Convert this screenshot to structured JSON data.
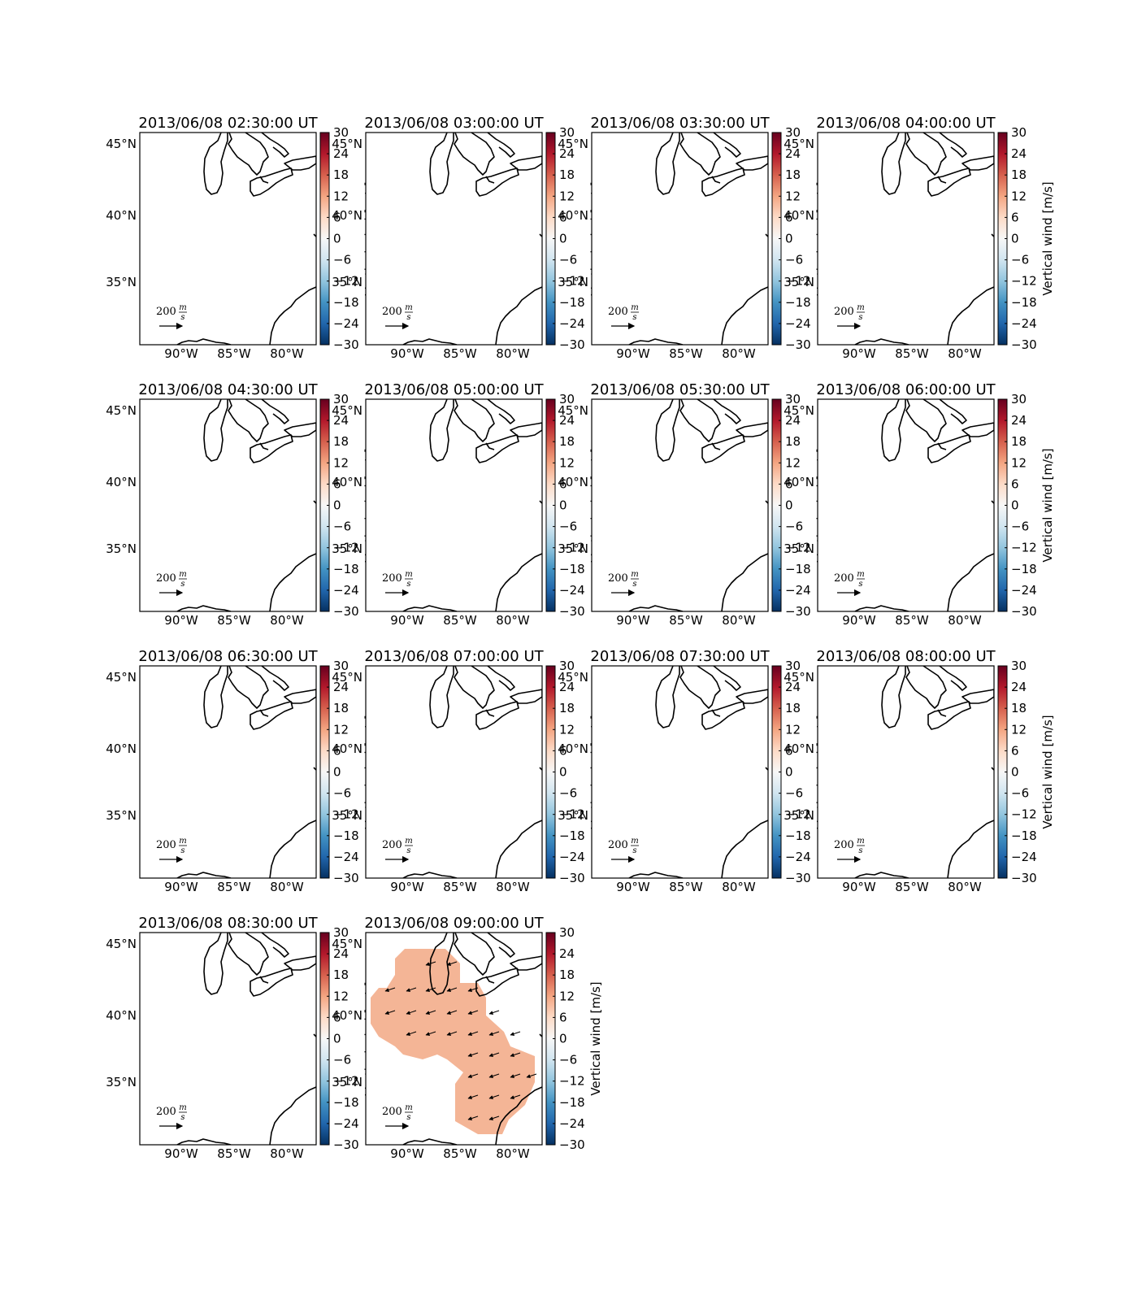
{
  "figure": {
    "colorbar": {
      "label": "Vertical wind [m/s]",
      "ticks": [
        "30",
        "24",
        "18",
        "12",
        "6",
        "0",
        "−6",
        "−12",
        "−18",
        "−24",
        "−30"
      ],
      "colormap": "RdBu_r",
      "stops": [
        "#67001f",
        "#b2182b",
        "#d6604d",
        "#f4a582",
        "#fddbc7",
        "#f7f7f7",
        "#d1e5f0",
        "#92c5de",
        "#4393c3",
        "#2166ac",
        "#053061"
      ],
      "range": [
        -30,
        30
      ]
    },
    "axes": {
      "lat_labels": [
        "45°N",
        "40°N",
        "35°N"
      ],
      "lon_labels": [
        "90°W",
        "85°W",
        "80°W"
      ]
    },
    "scale_arrow": {
      "value": "200",
      "unit_num": "m",
      "unit_den": "s"
    },
    "fill_color": "#f4b596",
    "panels": [
      {
        "title": "2013/06/08 02:30:00 UT",
        "has_data": false
      },
      {
        "title": "2013/06/08 03:00:00 UT",
        "has_data": false
      },
      {
        "title": "2013/06/08 03:30:00 UT",
        "has_data": false
      },
      {
        "title": "2013/06/08 04:00:00 UT",
        "has_data": false
      },
      {
        "title": "2013/06/08 04:30:00 UT",
        "has_data": false
      },
      {
        "title": "2013/06/08 05:00:00 UT",
        "has_data": false
      },
      {
        "title": "2013/06/08 05:30:00 UT",
        "has_data": false
      },
      {
        "title": "2013/06/08 06:00:00 UT",
        "has_data": false
      },
      {
        "title": "2013/06/08 06:30:00 UT",
        "has_data": false
      },
      {
        "title": "2013/06/08 07:00:00 UT",
        "has_data": false
      },
      {
        "title": "2013/06/08 07:30:00 UT",
        "has_data": false
      },
      {
        "title": "2013/06/08 08:00:00 UT",
        "has_data": false
      },
      {
        "title": "2013/06/08 08:30:00 UT",
        "has_data": false
      },
      {
        "title": "2013/06/08 09:00:00 UT",
        "has_data": true,
        "vertical_wind": 8
      }
    ]
  }
}
